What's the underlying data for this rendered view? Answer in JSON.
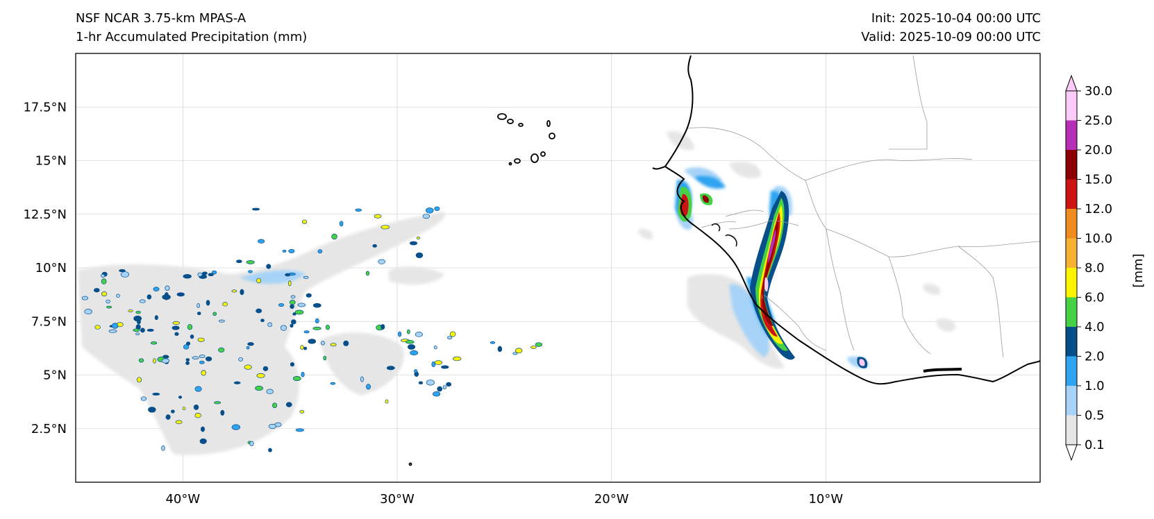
{
  "titles": {
    "left_line1": "NSF NCAR 3.75-km MPAS-A",
    "left_line2": "1-hr Accumulated Precipitation (mm)",
    "right_line1": "Init: 2025-10-04 00:00 UTC",
    "right_line2": "Valid: 2025-10-09 00:00 UTC"
  },
  "map": {
    "projection": "PlateCarree",
    "lon_range": [
      -45,
      0
    ],
    "lat_range": [
      0,
      20
    ],
    "gridlines": true,
    "lat_ticks": [
      {
        "value": 2.5,
        "label": "2.5°N"
      },
      {
        "value": 5,
        "label": "5°N"
      },
      {
        "value": 7.5,
        "label": "7.5°N"
      },
      {
        "value": 10,
        "label": "10°N"
      },
      {
        "value": 12.5,
        "label": "12.5°N"
      },
      {
        "value": 15,
        "label": "15°N"
      },
      {
        "value": 17.5,
        "label": "17.5°N"
      }
    ],
    "lon_ticks": [
      {
        "value": -40,
        "label": "40°W"
      },
      {
        "value": -30,
        "label": "30°W"
      },
      {
        "value": -20,
        "label": "20°W"
      },
      {
        "value": -10,
        "label": "10°W"
      }
    ],
    "coastline_color": "#000000",
    "border_color": "#9a9a9a"
  },
  "colorbar": {
    "unit_label": "[mm]",
    "extend": "both",
    "levels": [
      "0.1",
      "0.5",
      "1.0",
      "2.0",
      "4.0",
      "6.0",
      "8.0",
      "10.0",
      "12.0",
      "15.0",
      "20.0",
      "25.0",
      "30.0"
    ],
    "colors": [
      "#e6e6e6",
      "#a6d3f7",
      "#2fa3ef",
      "#064f8a",
      "#46d146",
      "#fef400",
      "#f7b133",
      "#ef8c20",
      "#cc1414",
      "#8d0000",
      "#b52fb7",
      "#fccbf7"
    ],
    "under_color": "#ffffff",
    "over_color": "#fccbf7"
  }
}
